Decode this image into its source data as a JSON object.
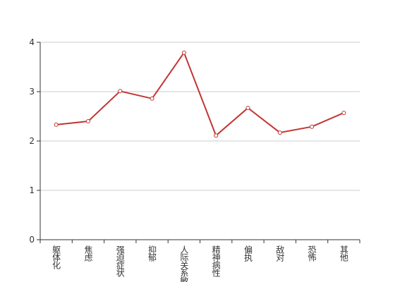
{
  "chart_data": {
    "type": "line",
    "categories": [
      "躯体化",
      "焦虑",
      "强迫症状",
      "抑郁",
      "人际关系敏感",
      "精神病性",
      "偏执",
      "敌对",
      "恐怖",
      "其他"
    ],
    "series": [
      {
        "color": "#c23531",
        "values": [
          2.33,
          2.4,
          3.01,
          2.86,
          3.79,
          2.11,
          2.67,
          2.17,
          2.29,
          2.57
        ]
      }
    ],
    "ylim": [
      0,
      4
    ],
    "yticks": [
      0,
      1,
      2,
      3,
      4
    ],
    "grid": true
  }
}
